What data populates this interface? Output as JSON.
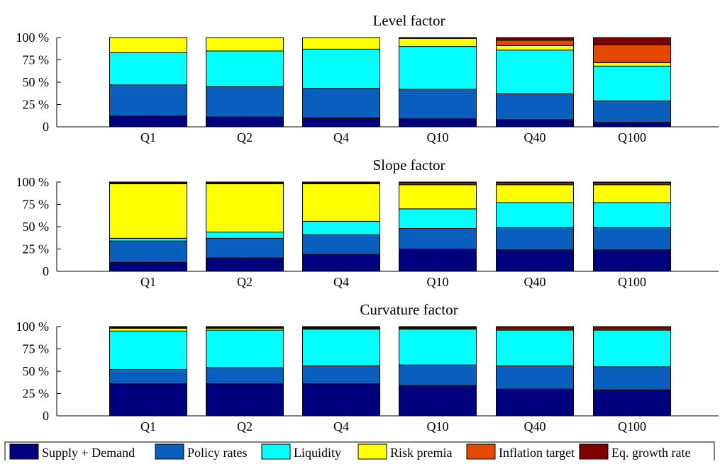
{
  "chart_data": [
    {
      "type": "bar",
      "stacked": true,
      "title": "Level factor",
      "categories": [
        "Q1",
        "Q2",
        "Q4",
        "Q10",
        "Q40",
        "Q100"
      ],
      "y_ticks": [
        "0",
        "25 %",
        "50 %",
        "75 %",
        "100 %"
      ],
      "ylim": [
        0,
        100
      ],
      "series": [
        {
          "name": "Supply + Demand",
          "values": [
            12,
            11,
            10,
            9,
            8,
            5
          ]
        },
        {
          "name": "Policy rates",
          "values": [
            35,
            34,
            33,
            33,
            29,
            24
          ]
        },
        {
          "name": "Liquidity",
          "values": [
            36,
            40,
            44,
            48,
            49,
            39
          ]
        },
        {
          "name": "Risk premia",
          "values": [
            17,
            15,
            13,
            9,
            5,
            4
          ]
        },
        {
          "name": "Inflation target",
          "values": [
            0,
            0,
            0,
            0.5,
            6,
            20
          ]
        },
        {
          "name": "Eq. growth rate",
          "values": [
            0,
            0,
            0,
            0.5,
            3,
            8
          ]
        }
      ]
    },
    {
      "type": "bar",
      "stacked": true,
      "title": "Slope factor",
      "categories": [
        "Q1",
        "Q2",
        "Q4",
        "Q10",
        "Q40",
        "Q100"
      ],
      "y_ticks": [
        "0",
        "25 %",
        "50 %",
        "75 %",
        "100 %"
      ],
      "ylim": [
        0,
        100
      ],
      "series": [
        {
          "name": "Supply + Demand",
          "values": [
            10,
            15,
            19,
            25,
            24,
            24
          ]
        },
        {
          "name": "Policy rates",
          "values": [
            24,
            22,
            22,
            23,
            25,
            25
          ]
        },
        {
          "name": "Liquidity",
          "values": [
            3,
            7,
            15,
            22,
            28,
            28
          ]
        },
        {
          "name": "Risk premia",
          "values": [
            61,
            54,
            42,
            27,
            20,
            20
          ]
        },
        {
          "name": "Inflation target",
          "values": [
            1,
            1,
            1,
            2,
            2,
            2
          ]
        },
        {
          "name": "Eq. growth rate",
          "values": [
            1,
            1,
            1,
            1,
            1,
            1
          ]
        }
      ]
    },
    {
      "type": "bar",
      "stacked": true,
      "title": "Curvature factor",
      "categories": [
        "Q1",
        "Q2",
        "Q4",
        "Q10",
        "Q40",
        "Q100"
      ],
      "y_ticks": [
        "0",
        "25 %",
        "50 %",
        "75 %",
        "100 %"
      ],
      "ylim": [
        0,
        100
      ],
      "series": [
        {
          "name": "Supply + Demand",
          "values": [
            36,
            36,
            36,
            34,
            30,
            29
          ]
        },
        {
          "name": "Policy rates",
          "values": [
            16,
            18,
            20,
            23,
            26,
            26
          ]
        },
        {
          "name": "Liquidity",
          "values": [
            43,
            42,
            41,
            40,
            40,
            41
          ]
        },
        {
          "name": "Risk premia",
          "values": [
            3,
            2,
            1,
            1,
            0.5,
            0.5
          ]
        },
        {
          "name": "Inflation target",
          "values": [
            1,
            1,
            1,
            1,
            1.5,
            1.5
          ]
        },
        {
          "name": "Eq. growth rate",
          "values": [
            1,
            1,
            1,
            1,
            2,
            2
          ]
        }
      ]
    }
  ],
  "legend": {
    "placement": "bottom",
    "items": [
      {
        "label": "Supply + Demand",
        "color": "#00007f"
      },
      {
        "label": "Policy rates",
        "color": "#0a5fbe"
      },
      {
        "label": "Liquidity",
        "color": "#00ffff"
      },
      {
        "label": "Risk premia",
        "color": "#ffff00"
      },
      {
        "label": "Inflation target",
        "color": "#e34a00"
      },
      {
        "label": "Eq. growth rate",
        "color": "#7f0000"
      }
    ]
  }
}
